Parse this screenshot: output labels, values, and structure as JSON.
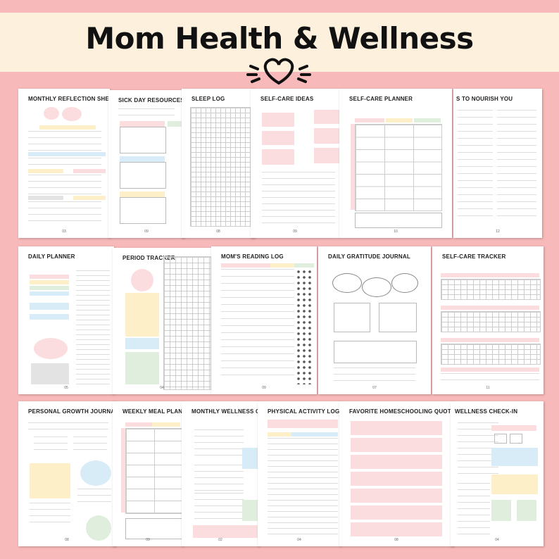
{
  "title": "Mom Health & Wellness",
  "colors": {
    "background": "#f7b9b9",
    "banner": "#fdf0dc",
    "heart": "#111111"
  },
  "pages": [
    {
      "title": "MONTHLY REFLECTION SHEET",
      "number": "03"
    },
    {
      "title": "SICK DAY RESOURCES",
      "number": "09"
    },
    {
      "title": "SLEEP LOG",
      "number": "08"
    },
    {
      "title": "SELF-CARE IDEAS",
      "number": "09"
    },
    {
      "title": "SELF-CARE PLANNER",
      "number": "10"
    },
    {
      "title": "S TO NOURISH YOU",
      "number": "12"
    },
    {
      "title": "DAILY PLANNER",
      "number": "05"
    },
    {
      "title": "PERIOD TRACKER",
      "number": "04"
    },
    {
      "title": "MOM'S READING LOG",
      "number": "09"
    },
    {
      "title": "DAILY GRATITUDE JOURNAL",
      "number": "07"
    },
    {
      "title": "SELF-CARE TRACKER",
      "number": "11"
    },
    {
      "title": "PERSONAL GROWTH JOURNAL",
      "number": "08"
    },
    {
      "title": "WEEKLY MEAL PLANNER",
      "number": "09"
    },
    {
      "title": "MONTHLY WELLNESS CHECK-IN",
      "number": "02"
    },
    {
      "title": "PHYSICAL ACTIVITY LOG",
      "number": "04"
    },
    {
      "title": "FAVORITE HOMESCHOOLING QUOTES...",
      "number": "08"
    },
    {
      "title": "WELLNESS CHECK-IN",
      "number": "04"
    }
  ]
}
